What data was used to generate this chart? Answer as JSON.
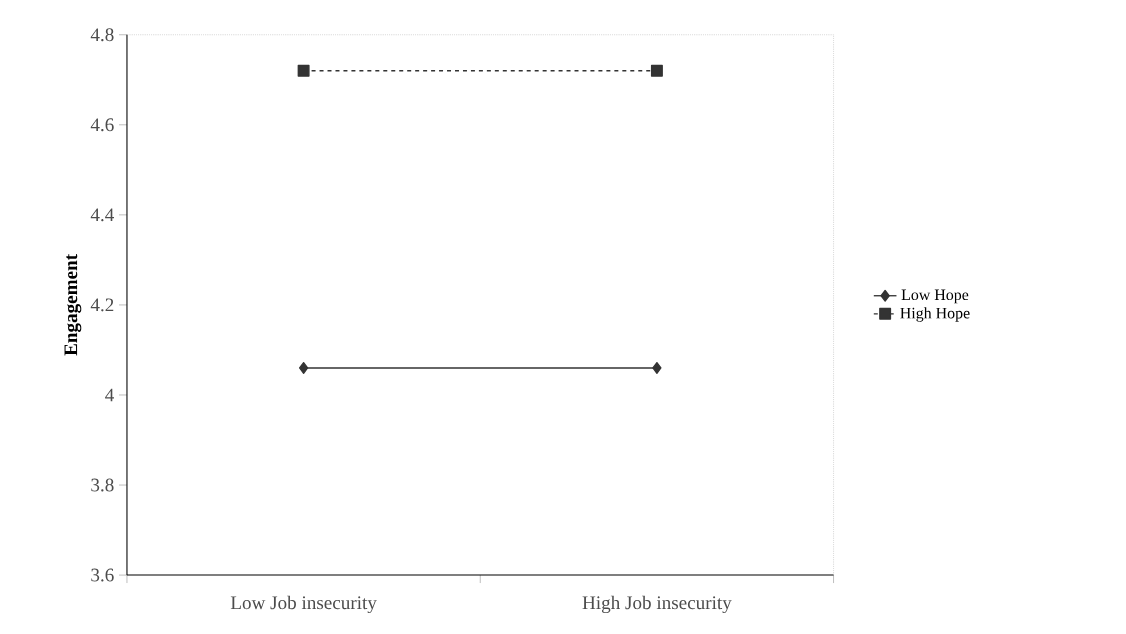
{
  "chart_data": {
    "type": "line",
    "ylabel": "Engagement",
    "categories": [
      "Low Job insecurity",
      "High Job insecurity"
    ],
    "series": [
      {
        "name": "Low Hope",
        "color": "#333333",
        "values": [
          4.06,
          4.06
        ],
        "marker": "diamond",
        "line_style": "solid"
      },
      {
        "name": "High Hope",
        "color": "#333333",
        "values": [
          4.72,
          4.72
        ],
        "marker": "square",
        "line_style": "dashed"
      }
    ],
    "ylim": [
      3.6,
      4.8
    ],
    "yticks": [
      {
        "value": 3.6,
        "label": "3.6"
      },
      {
        "value": 3.8,
        "label": "3.8"
      },
      {
        "value": 4,
        "label": "4"
      },
      {
        "value": 4.2,
        "label": "4.2"
      },
      {
        "value": 4.4,
        "label": "4.4"
      },
      {
        "value": 4.6,
        "label": "4.6"
      },
      {
        "value": 4.8,
        "label": "4.8"
      }
    ],
    "grid": false,
    "legend": "right"
  }
}
